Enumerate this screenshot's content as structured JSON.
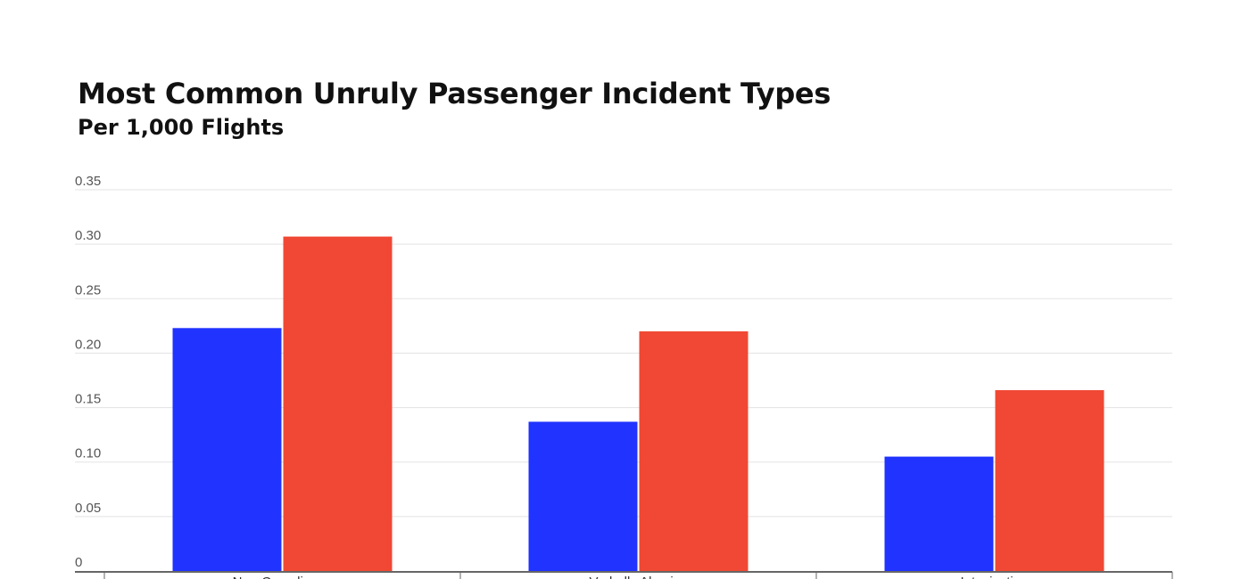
{
  "chart_data": {
    "type": "bar",
    "title": "Most Common Unruly Passenger Incident Types",
    "subtitle": "Per 1,000 Flights",
    "xlabel": "",
    "ylabel": "",
    "categories": [
      "Non-Compliance",
      "Verbally Abusive",
      "Intoxication"
    ],
    "series": [
      {
        "color": "#2033ff",
        "values": [
          0.223,
          0.137,
          0.105
        ]
      },
      {
        "color": "#f04834",
        "values": [
          0.307,
          0.22,
          0.166
        ]
      }
    ],
    "yticks": [
      "0",
      "0.05",
      "0.10",
      "0.15",
      "0.20",
      "0.25",
      "0.30",
      "0.35"
    ],
    "ylim": [
      0,
      0.35
    ],
    "grid": true,
    "legend": "none"
  }
}
